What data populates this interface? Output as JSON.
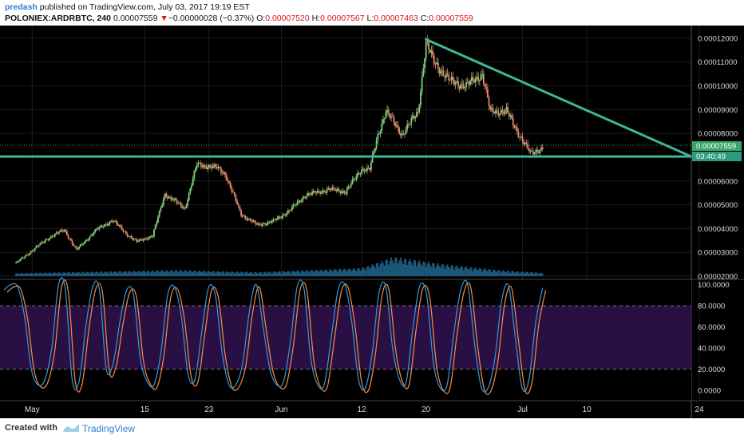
{
  "header": {
    "author": "predash",
    "published_text": "published on TradingView.com, July 03, 2017 19:19 EST",
    "symbol": "POLONIEX:ARDRBTC, 240",
    "last": "0.00007559",
    "change_arrow": "▼",
    "change": "−0.00000028 (−0.37%)",
    "o_label": "O:",
    "o_value": "0.00007520",
    "h_label": "H:",
    "h_value": "0.00007567",
    "l_label": "L:",
    "l_value": "0.00007463",
    "c_label": "C:",
    "c_value": "0.00007559"
  },
  "footer": {
    "created_with": "Created with",
    "brand": "TradingView"
  },
  "colors": {
    "background": "#000000",
    "up_candle": "#7fd07f",
    "down_candle": "#e8846a",
    "trendline": "#3fb59a",
    "volume": "#1f5f86",
    "stoch_k": "#2f9be0",
    "stoch_d": "#ff8a3d",
    "stoch_band": "#2a0f45",
    "price_marker": "#3aa86a",
    "time_marker": "#2a9a80"
  },
  "chart_data": [
    {
      "type": "candlestick",
      "symbol": "POLONIEX:ARDRBTC",
      "interval": "240",
      "ylim": [
        2e-05,
        0.000124
      ],
      "y_ticks": [
        "0.00012000",
        "0.00011000",
        "0.00010000",
        "0.00009000",
        "0.00008000",
        "0.00007000",
        "0.00006000",
        "0.00005000",
        "0.00004000",
        "0.00003000",
        "0.00002000"
      ],
      "x_ticks": [
        "May",
        "15",
        "23",
        "Jun",
        "12",
        "20",
        "Jul",
        "10",
        "24"
      ],
      "x_range_days": [
        -2,
        84
      ],
      "x_tick_days": [
        2,
        16,
        24,
        33,
        43,
        51,
        63,
        71,
        85
      ],
      "last_price_label": "0.00007559",
      "countdown_label": "03:40:49",
      "anchors": [
        [
          0,
          2.55e-05
        ],
        [
          4,
          3.6e-05
        ],
        [
          6,
          3.95e-05
        ],
        [
          7.5,
          3.1e-05
        ],
        [
          10,
          3.95e-05
        ],
        [
          12,
          4.35e-05
        ],
        [
          14,
          3.7e-05
        ],
        [
          15,
          3.45e-05
        ],
        [
          17,
          3.7e-05
        ],
        [
          18.5,
          5.45e-05
        ],
        [
          21,
          4.85e-05
        ],
        [
          22.5,
          6.7e-05
        ],
        [
          25,
          6.55e-05
        ],
        [
          26,
          6.3e-05
        ],
        [
          28,
          4.6e-05
        ],
        [
          30,
          4.15e-05
        ],
        [
          32,
          4.3e-05
        ],
        [
          34,
          4.75e-05
        ],
        [
          36,
          5.4e-05
        ],
        [
          39,
          5.65e-05
        ],
        [
          41,
          5.55e-05
        ],
        [
          43,
          6.5e-05
        ],
        [
          44,
          6.5e-05
        ],
        [
          45,
          7.9e-05
        ],
        [
          46,
          8.95e-05
        ],
        [
          48,
          7.95e-05
        ],
        [
          50,
          8.9e-05
        ],
        [
          51,
          0.000118
        ],
        [
          52,
          0.00011
        ],
        [
          54,
          0.000102
        ],
        [
          56,
          0.0001
        ],
        [
          58,
          0.000105
        ],
        [
          59,
          8.9e-05
        ],
        [
          61,
          8.95e-05
        ],
        [
          62,
          8.3e-05
        ],
        [
          64,
          7.15e-05
        ],
        [
          65.5,
          7.4e-05
        ]
      ],
      "volume_shape": [
        [
          0,
          0.15
        ],
        [
          20,
          0.3
        ],
        [
          30,
          0.2
        ],
        [
          43,
          0.4
        ],
        [
          47,
          0.95
        ],
        [
          53,
          0.6
        ],
        [
          60,
          0.3
        ],
        [
          66,
          0.15
        ]
      ],
      "trendlines": [
        {
          "name": "horizontal support",
          "points": [
            [
              -2,
              7.03e-05
            ],
            [
              84,
              7.03e-05
            ]
          ]
        },
        {
          "name": "descending resistance",
          "points": [
            [
              51,
              0.0001195
            ],
            [
              84,
              7.03e-05
            ]
          ]
        }
      ]
    },
    {
      "type": "line",
      "indicator": "stochastic",
      "ylim": [
        -0.07,
        1.02
      ],
      "y_ticks": [
        "100.0000",
        "80.0000",
        "60.0000",
        "40.0000",
        "20.0000",
        "0.0000"
      ],
      "bands": [
        20,
        80
      ],
      "series": [
        {
          "values": [
            0.95,
            1,
            0.98,
            0.7,
            0.2,
            0.05,
            0.1,
            0.4,
            1,
            0.95,
            0.1,
            0.08,
            0.6,
            0.98,
            0.95,
            0.2,
            0.25,
            0.65,
            0.95,
            0.9,
            0.3,
            0.08,
            0.05,
            0.35,
            0.9,
            0.98,
            0.7,
            0.15,
            0.1,
            0.55,
            0.97,
            0.9,
            0.35,
            0.05,
            0.05,
            0.25,
            0.75,
            1,
            0.6,
            0.2,
            0.05,
            0.08,
            0.45,
            0.98,
            0.96,
            0.3,
            0.05,
            0.06,
            0.5,
            0.95,
            1,
            0.65,
            0.1,
            0.02,
            0.35,
            0.92,
            0.98,
            0.4,
            0.1,
            0.08,
            0.6,
            0.99,
            0.9,
            0.25,
            0.02,
            0.05,
            0.55,
            0.95,
            1,
            0.45,
            0.03,
            0.02,
            0.3,
            0.85,
            0.99,
            0.5,
            0.02,
            0.1,
            0.65,
            0.97
          ]
        }
      ]
    }
  ]
}
